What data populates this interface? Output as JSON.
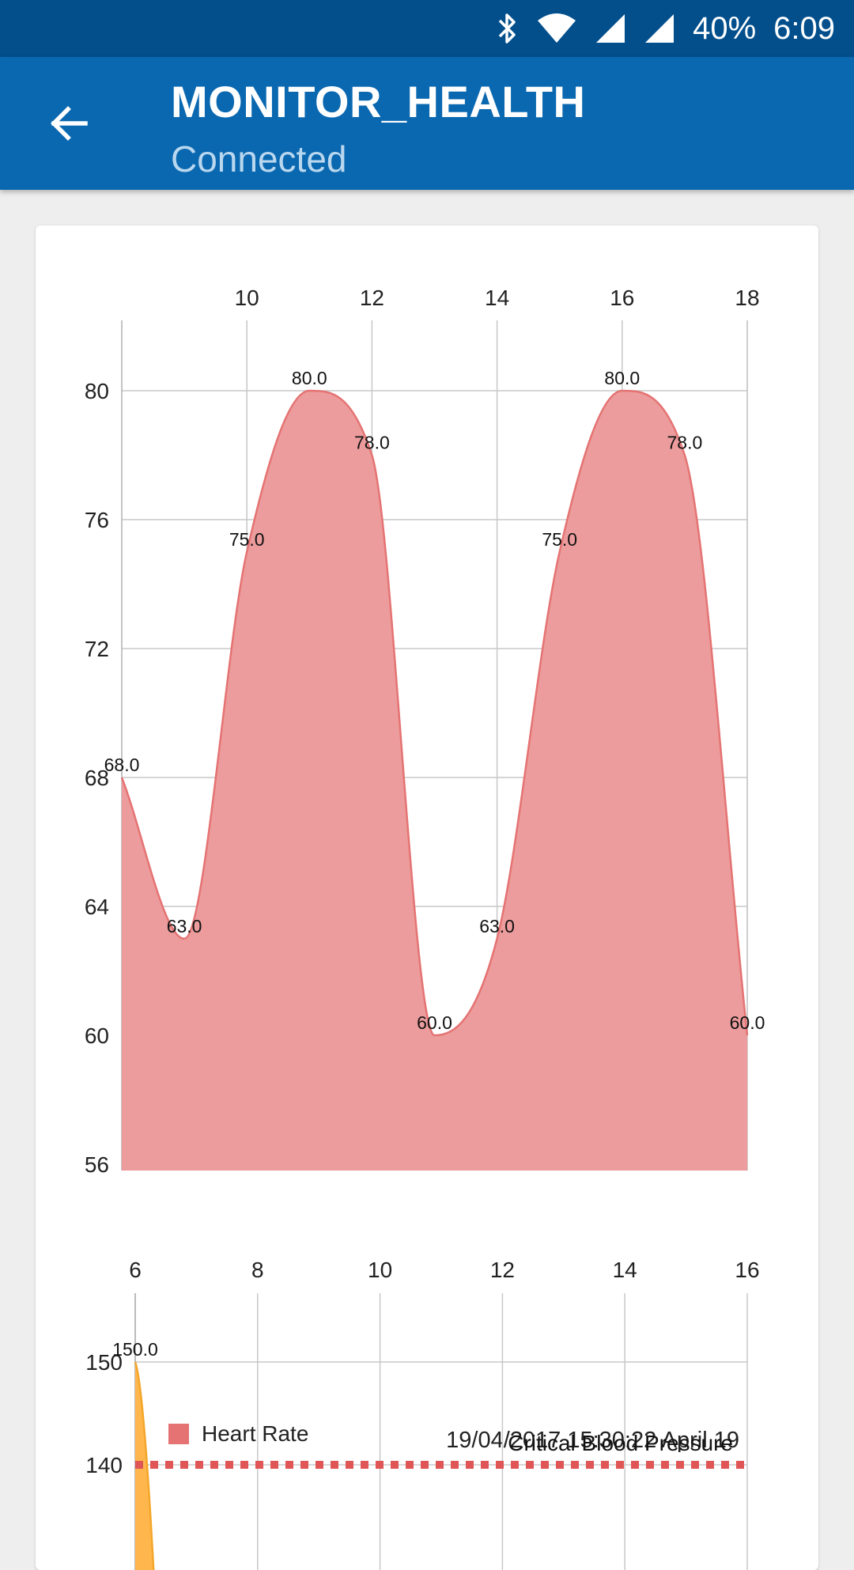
{
  "status_bar": {
    "battery": "40%",
    "time": "6:09",
    "icons": [
      "bluetooth-icon",
      "wifi-icon",
      "signal-icon",
      "signal-icon"
    ]
  },
  "app_bar": {
    "back_icon": "arrow-left-icon",
    "title": "MONITOR_HEALTH",
    "subtitle": "Connected"
  },
  "legend": {
    "label": "Heart Rate",
    "color": "#e57373"
  },
  "timestamp": "19/04/2017 15:30:22 April 19",
  "chart_data": [
    {
      "type": "area",
      "x_range": [
        8,
        18
      ],
      "x_ticks": [
        10,
        12,
        14,
        16,
        18
      ],
      "y_range": [
        56,
        82
      ],
      "y_ticks": [
        56,
        60,
        64,
        68,
        72,
        76,
        80
      ],
      "x_axis_position": "top",
      "grid": true,
      "legend": "bottom-left",
      "series": [
        {
          "name": "Heart Rate",
          "color": "#e57373",
          "fill": "#ec9c9d",
          "x": [
            8,
            9,
            10,
            11,
            12,
            13,
            14,
            15,
            16,
            17,
            18
          ],
          "values": [
            68.0,
            63.0,
            75.0,
            80.0,
            78.0,
            60.0,
            63.0,
            75.0,
            80.0,
            78.0,
            60.0
          ],
          "labels": [
            "68.0",
            "63.0",
            "75.0",
            "80.0",
            "78.0",
            "60.0",
            "63.0",
            "75.0",
            "80.0",
            "78.0",
            "60.0"
          ]
        }
      ]
    },
    {
      "type": "area",
      "x_range": [
        6,
        16
      ],
      "x_ticks": [
        6,
        8,
        10,
        12,
        14,
        16
      ],
      "y_range": [
        136,
        156
      ],
      "y_ticks": [
        140,
        150
      ],
      "x_axis_position": "top",
      "grid": true,
      "series": [
        {
          "name": "",
          "color": "#f4a62a",
          "fill": "#ffb74d",
          "x": [
            6,
            6.3
          ],
          "values": [
            150.0,
            136
          ],
          "labels": [
            "150.0"
          ]
        }
      ],
      "limit_line": {
        "value": 140,
        "label": "Critical Blood Pressure",
        "color": "#e05555"
      }
    }
  ]
}
